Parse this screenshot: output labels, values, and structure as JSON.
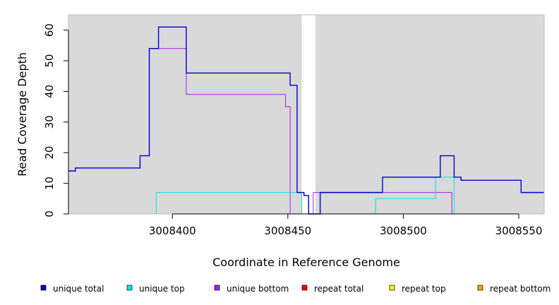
{
  "chart_data": {
    "type": "line",
    "step": true,
    "xlabel": "Coordinate in Reference Genome",
    "ylabel": "Read Coverage Depth",
    "xlim": [
      3008355,
      3008561
    ],
    "ylim": [
      0,
      65
    ],
    "x_ticks": [
      3008400,
      3008450,
      3008500,
      3008550
    ],
    "y_ticks": [
      0,
      10,
      20,
      30,
      40,
      50,
      60
    ],
    "grid": false,
    "background": "#d9d9d9",
    "gap": {
      "x_start": 3008456,
      "x_end": 3008462,
      "color": "#ffffff"
    },
    "series": [
      {
        "name": "unique total",
        "color": "#0000cc",
        "steps": [
          [
            3008355,
            14
          ],
          [
            3008358,
            15
          ],
          [
            3008386,
            19
          ],
          [
            3008390,
            54
          ],
          [
            3008394,
            61
          ],
          [
            3008406,
            46
          ],
          [
            3008451,
            42
          ],
          [
            3008454,
            7
          ],
          [
            3008457,
            6
          ],
          [
            3008459,
            0
          ],
          [
            3008464,
            7
          ],
          [
            3008491,
            12
          ],
          [
            3008516,
            19
          ],
          [
            3008522,
            12
          ],
          [
            3008525,
            11
          ],
          [
            3008551,
            7
          ],
          [
            3008561,
            7
          ]
        ]
      },
      {
        "name": "unique top",
        "color": "#00e5e5",
        "steps": [
          [
            3008355,
            0
          ],
          [
            3008393,
            7
          ],
          [
            3008456,
            0
          ],
          [
            3008462,
            0
          ],
          [
            3008488,
            5
          ],
          [
            3008514,
            12
          ],
          [
            3008522,
            0
          ],
          [
            3008561,
            0
          ]
        ]
      },
      {
        "name": "unique bottom",
        "color": "#a020f0",
        "steps": [
          [
            3008355,
            14
          ],
          [
            3008358,
            15
          ],
          [
            3008386,
            19
          ],
          [
            3008390,
            54
          ],
          [
            3008406,
            39
          ],
          [
            3008449,
            35
          ],
          [
            3008451,
            0
          ],
          [
            3008461,
            7
          ],
          [
            3008521,
            0
          ],
          [
            3008561,
            0
          ]
        ]
      },
      {
        "name": "repeat total",
        "color": "#ff0000",
        "steps": [
          [
            3008355,
            0
          ],
          [
            3008561,
            0
          ]
        ]
      },
      {
        "name": "repeat top",
        "color": "#ffff00",
        "steps": [
          [
            3008355,
            0
          ],
          [
            3008561,
            0
          ]
        ]
      },
      {
        "name": "repeat bottom",
        "color": "#ffa500",
        "steps": [
          [
            3008355,
            0
          ],
          [
            3008561,
            0
          ]
        ]
      }
    ],
    "legend": {
      "position": "bottom",
      "entries": [
        "unique total",
        "unique top",
        "unique bottom",
        "repeat total",
        "repeat top",
        "repeat bottom"
      ]
    }
  }
}
